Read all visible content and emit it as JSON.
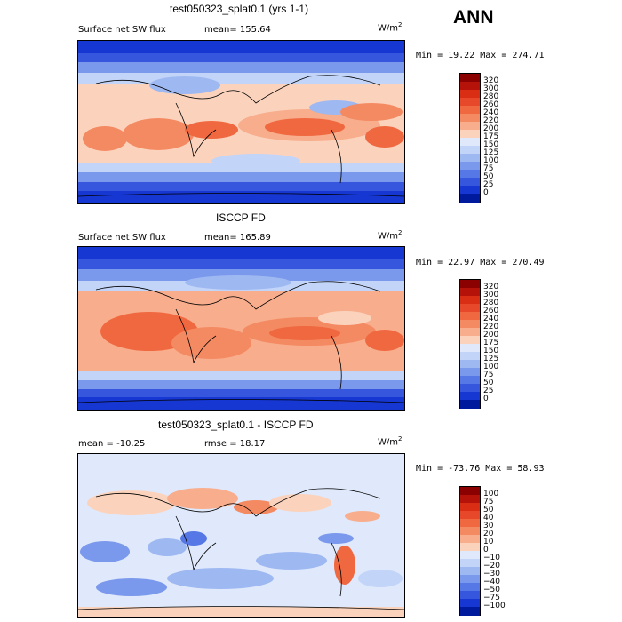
{
  "header": {
    "title": "test050323_splat0.1 (yrs 1-1)",
    "season": "ANN"
  },
  "panels": [
    {
      "id": "model",
      "title": "",
      "field_label": "Surface net SW flux",
      "stat_left": "mean= 155.64",
      "units": "W/m",
      "units_sup": "2",
      "minmax": "Min =  19.22 Max = 274.71",
      "colorbar": {
        "labels": [
          "320",
          "300",
          "280",
          "260",
          "240",
          "220",
          "200",
          "175",
          "150",
          "125",
          "100",
          "75",
          "50",
          "25",
          "0"
        ],
        "colors": [
          "#8b0000",
          "#b5120a",
          "#d92e14",
          "#e8482a",
          "#f0683f",
          "#f48a62",
          "#f8ad8c",
          "#fbd3bd",
          "#dfe9fb",
          "#c2d4f8",
          "#9eb8f2",
          "#7a98ec",
          "#5677e6",
          "#3556dd",
          "#1637d2",
          "#001a9e"
        ]
      }
    },
    {
      "id": "obs",
      "title": "ISCCP FD",
      "field_label": "Surface net SW flux",
      "stat_left": "mean= 165.89",
      "units": "W/m",
      "units_sup": "2",
      "minmax": "Min =  22.97 Max = 270.49",
      "colorbar": {
        "labels": [
          "320",
          "300",
          "280",
          "260",
          "240",
          "220",
          "200",
          "175",
          "150",
          "125",
          "100",
          "75",
          "50",
          "25",
          "0"
        ],
        "colors": [
          "#8b0000",
          "#b5120a",
          "#d92e14",
          "#e8482a",
          "#f0683f",
          "#f48a62",
          "#f8ad8c",
          "#fbd3bd",
          "#dfe9fb",
          "#c2d4f8",
          "#9eb8f2",
          "#7a98ec",
          "#5677e6",
          "#3556dd",
          "#1637d2",
          "#001a9e"
        ]
      }
    },
    {
      "id": "diff",
      "title": "test050323_splat0.1 - ISCCP FD",
      "field_label": "mean = -10.25",
      "stat_left": "rmse =  18.17",
      "units": "W/m",
      "units_sup": "2",
      "minmax": "Min = -73.76 Max =  58.93",
      "colorbar": {
        "labels": [
          "100",
          "75",
          "50",
          "40",
          "30",
          "20",
          "10",
          "0",
          "−10",
          "−20",
          "−30",
          "−40",
          "−50",
          "−75",
          "−100"
        ],
        "colors": [
          "#8b0000",
          "#b5120a",
          "#d92e14",
          "#e8482a",
          "#f0683f",
          "#f48a62",
          "#f8ad8c",
          "#fbd3bd",
          "#dfe9fb",
          "#c2d4f8",
          "#9eb8f2",
          "#7a98ec",
          "#5677e6",
          "#3556dd",
          "#1637d2",
          "#001a9e"
        ]
      }
    }
  ]
}
